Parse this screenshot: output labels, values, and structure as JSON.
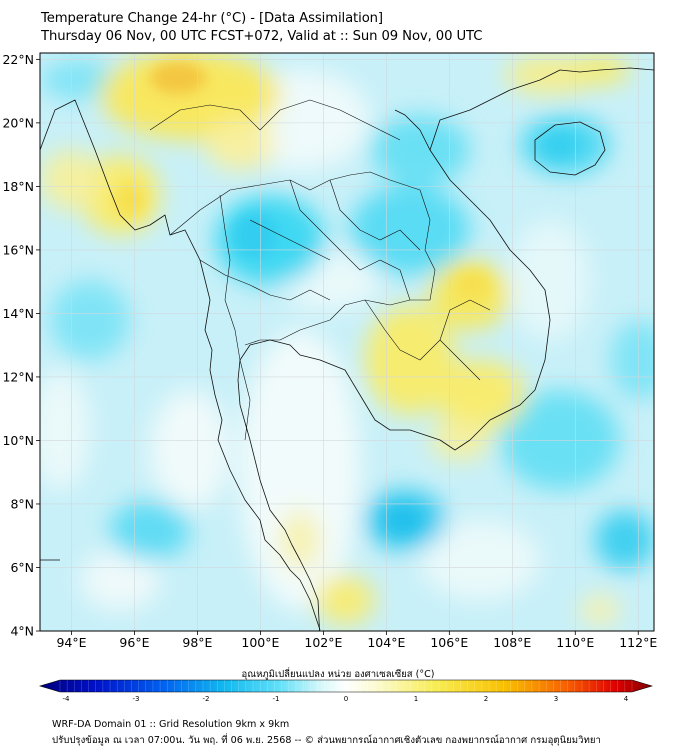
{
  "title": {
    "line1": "Temperature Change 24-hr (°C) - [Data Assimilation]",
    "line2": "Thursday 06 Nov, 00 UTC FCST+072, Valid at :: Sun 09 Nov, 00 UTC"
  },
  "map": {
    "lat_labels": [
      "22°N",
      "20°N",
      "18°N",
      "16°N",
      "14°N",
      "12°N",
      "10°N",
      "8°N",
      "6°N",
      "4°N"
    ],
    "lon_labels": [
      "94°E",
      "96°E",
      "98°E",
      "100°E",
      "102°E",
      "104°E",
      "106°E",
      "108°E",
      "110°E",
      "112°E"
    ],
    "lat_values": [
      22,
      20,
      18,
      16,
      14,
      12,
      10,
      8,
      6,
      4
    ],
    "lon_values": [
      94,
      96,
      98,
      100,
      102,
      104,
      106,
      108,
      110,
      112
    ],
    "extent": {
      "lon_min": 93,
      "lon_max": 112.5,
      "lat_min": 4,
      "lat_max": 22.2
    },
    "colors": {
      "cool": "#40d4f0",
      "neutral": "#e8f8fa",
      "warm": "#f5ea55",
      "hot": "#f0c030"
    }
  },
  "colorbar": {
    "label": "อุณหภูมิเปลี่ยนแปลง หน่วย องศาเซลเซียส (°C)",
    "ticks": [
      "-4",
      "-3",
      "-2",
      "-1",
      "0",
      "1",
      "2",
      "3",
      "4"
    ],
    "tick_values": [
      -4,
      -3,
      -2,
      -1,
      0,
      1,
      2,
      3,
      4
    ],
    "stops": [
      "#00007a",
      "#0010c8",
      "#0060f0",
      "#10b8f0",
      "#60e0f8",
      "#d8f8fa",
      "#ffffff",
      "#fbfbd0",
      "#f8ec50",
      "#f8c000",
      "#f86000",
      "#e00000",
      "#800000"
    ]
  },
  "footer": {
    "line1": "WRF-DA Domain 01 :: Grid Resolution 9km x 9km",
    "line2": "ปรับปรุงข้อมูล ณ เวลา 07:00น. วัน พฤ. ที่ 06 พ.ย. 2568 -- © ส่วนพยากรณ์อากาศเชิงตัวเลข กองพยากรณ์อากาศ กรมอุตุนิยมวิทยา"
  }
}
